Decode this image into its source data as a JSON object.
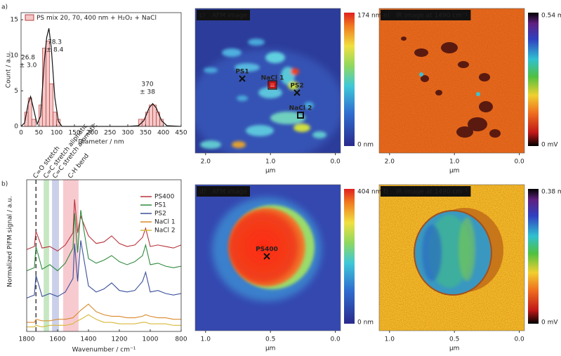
{
  "chart_data": [
    {
      "type": "histogram",
      "panel": "a)",
      "xlabel": "Diameter / nm",
      "ylabel": "Count / a.u.",
      "legend": "PS mix 20, 70, 400 nm + H₂O₂ + NaCl",
      "color": "#f5c8c8",
      "edgecolor": "#b5403c",
      "bins": [
        10,
        20,
        30,
        40,
        50,
        60,
        70,
        80,
        90,
        100,
        110,
        120,
        130,
        140,
        150,
        160,
        170,
        180,
        190,
        200,
        210,
        220,
        230,
        240,
        250,
        260,
        270,
        280,
        290,
        300,
        310,
        320,
        330,
        340,
        350,
        360,
        370,
        380,
        390,
        400
      ],
      "counts": [
        2,
        4,
        1,
        0,
        3,
        11,
        12,
        6,
        2,
        1,
        0,
        0,
        0,
        0,
        0,
        0,
        0,
        0,
        0,
        0,
        0,
        0,
        0,
        0,
        0,
        0,
        0,
        0,
        0,
        0,
        0,
        0,
        1,
        1,
        2,
        3,
        3,
        2,
        1
      ],
      "fit": {
        "x": [
          0,
          10,
          20,
          26.8,
          35,
          45,
          55,
          65,
          72,
          78.3,
          85,
          95,
          105,
          115,
          300,
          330,
          345,
          360,
          370,
          380,
          395,
          410,
          450
        ],
        "values": [
          0,
          0.5,
          3.2,
          4.2,
          2.5,
          0.3,
          1.5,
          9,
          12.5,
          13.8,
          11,
          4,
          0.7,
          0,
          0,
          0.1,
          0.8,
          2.6,
          3.2,
          2.6,
          0.8,
          0.1,
          0
        ]
      },
      "annotations": [
        "26.8",
        "± 3.0",
        "78.3",
        "± 8.4",
        "370",
        "± 38"
      ],
      "xlim": [
        0,
        450
      ],
      "xticks": [
        0,
        50,
        100,
        150,
        200,
        250,
        300,
        350,
        400,
        450
      ],
      "ylim": [
        0,
        16
      ],
      "yticks": [
        0,
        5,
        10,
        15
      ]
    },
    {
      "type": "line",
      "panel": "b)",
      "xlabel": "Wavenumber / cm⁻¹",
      "ylabel": "Normalized PiFM signal / a.u.",
      "x": [
        1800,
        1750,
        1740,
        1700,
        1650,
        1600,
        1550,
        1500,
        1490,
        1470,
        1450,
        1400,
        1350,
        1300,
        1250,
        1200,
        1150,
        1100,
        1050,
        1030,
        1000,
        950,
        900,
        850,
        800
      ],
      "series": [
        {
          "name": "PS400",
          "color": "#b8323a",
          "values": [
            5.4,
            5.6,
            6.6,
            5.5,
            5.6,
            5.3,
            5.7,
            6.5,
            8.7,
            6.5,
            7.6,
            6.3,
            5.8,
            5.9,
            6.3,
            5.8,
            5.6,
            5.7,
            6.2,
            6.8,
            5.6,
            5.7,
            5.6,
            5.5,
            5.7
          ]
        },
        {
          "name": "PS1",
          "color": "#2e8a3e",
          "values": [
            4.0,
            4.2,
            5.6,
            4.1,
            4.4,
            4.0,
            4.5,
            5.5,
            7.8,
            5.2,
            8.0,
            4.8,
            4.5,
            4.7,
            5.0,
            4.6,
            4.4,
            4.6,
            5.0,
            5.7,
            4.4,
            4.5,
            4.3,
            4.2,
            4.3
          ]
        },
        {
          "name": "PS2",
          "color": "#3a4f9a",
          "values": [
            2.2,
            2.4,
            3.7,
            2.3,
            2.5,
            2.3,
            2.6,
            3.5,
            5.8,
            3.3,
            6.0,
            3.0,
            2.6,
            2.8,
            3.2,
            2.7,
            2.6,
            2.7,
            3.3,
            3.9,
            2.6,
            2.7,
            2.5,
            2.4,
            2.5
          ]
        },
        {
          "name": "NaCl 1",
          "color": "#d9892a",
          "values": [
            0.6,
            0.6,
            0.8,
            0.7,
            0.7,
            0.8,
            0.8,
            0.9,
            1.0,
            1.2,
            1.4,
            1.8,
            1.3,
            1.1,
            1.0,
            1.0,
            0.9,
            0.9,
            1.0,
            1.1,
            1.0,
            0.9,
            0.9,
            0.8,
            0.8
          ]
        },
        {
          "name": "NaCl 2",
          "color": "#d8b838",
          "values": [
            0.3,
            0.3,
            0.4,
            0.3,
            0.4,
            0.4,
            0.4,
            0.5,
            0.6,
            0.7,
            0.8,
            1.1,
            0.8,
            0.6,
            0.6,
            0.5,
            0.5,
            0.5,
            0.6,
            0.6,
            0.5,
            0.5,
            0.5,
            0.4,
            0.4
          ]
        }
      ],
      "vlines": [
        {
          "label": "C=O stretch",
          "x": 1740
        }
      ],
      "bands": [
        {
          "label": "C=C stretch aliphatic",
          "range": [
            1690,
            1655
          ],
          "color": "#9fd89a"
        },
        {
          "label": "C=C stretch aromatic",
          "range": [
            1636,
            1591
          ],
          "color": "#a9b0dc"
        },
        {
          "label": "C-H bend",
          "range": [
            1564,
            1464
          ],
          "color": "#f2a6b0"
        }
      ],
      "xlim": [
        1800,
        800
      ],
      "xticks": [
        1800,
        1600,
        1400,
        1200,
        1000,
        800
      ],
      "ylim": [
        0,
        10
      ],
      "legend_loc": "upper right"
    }
  ],
  "images": [
    {
      "panel": "c)",
      "title": "AFM image",
      "colormap": "jet",
      "cbar_max": "174 nm",
      "cbar_min": "0 nm",
      "xlabel": "µm",
      "xlim": [
        2.16,
        -0.08
      ],
      "xticks": [
        {
          "value": 2.0,
          "label": "2.0"
        },
        {
          "value": 1.0,
          "label": "1.0"
        },
        {
          "value": 0.0,
          "label": "0.0"
        }
      ],
      "markers": [
        "PS1",
        "NaCl 1",
        "PS2",
        "NaCl 2"
      ]
    },
    {
      "panel": "d)",
      "title": "AFM image",
      "colormap": "jet",
      "cbar_max": "404 nm",
      "cbar_min": "0 nm",
      "xlabel": "µm",
      "xlim": [
        1.08,
        -0.04
      ],
      "xticks": [
        {
          "value": 1.0,
          "label": "1.0"
        },
        {
          "value": 0.5,
          "label": "0.5"
        },
        {
          "value": 0.0,
          "label": "0.0"
        }
      ],
      "markers": [
        "PS400"
      ]
    },
    {
      "panel": "e)",
      "title": "IR image at 1490 cm⁻¹",
      "colormap": "ir",
      "cbar_max": "0.54 mV",
      "cbar_min": "0 mV",
      "xlabel": "µm",
      "xlim": [
        2.16,
        -0.08
      ],
      "xticks": [
        {
          "value": 2.0,
          "label": "2.0"
        },
        {
          "value": 1.0,
          "label": "1.0"
        },
        {
          "value": 0.0,
          "label": "0.0"
        }
      ],
      "markers": []
    },
    {
      "panel": "f)",
      "title": "IR image at 1490 cm⁻¹",
      "colormap": "ir",
      "cbar_max": "0.38 mV",
      "cbar_min": "0 mV",
      "xlabel": "µm",
      "xlim": [
        1.08,
        -0.04
      ],
      "xticks": [
        {
          "value": 1.0,
          "label": "1.0"
        },
        {
          "value": 0.5,
          "label": "0.5"
        },
        {
          "value": 0.0,
          "label": "0.0"
        }
      ],
      "markers": []
    }
  ]
}
